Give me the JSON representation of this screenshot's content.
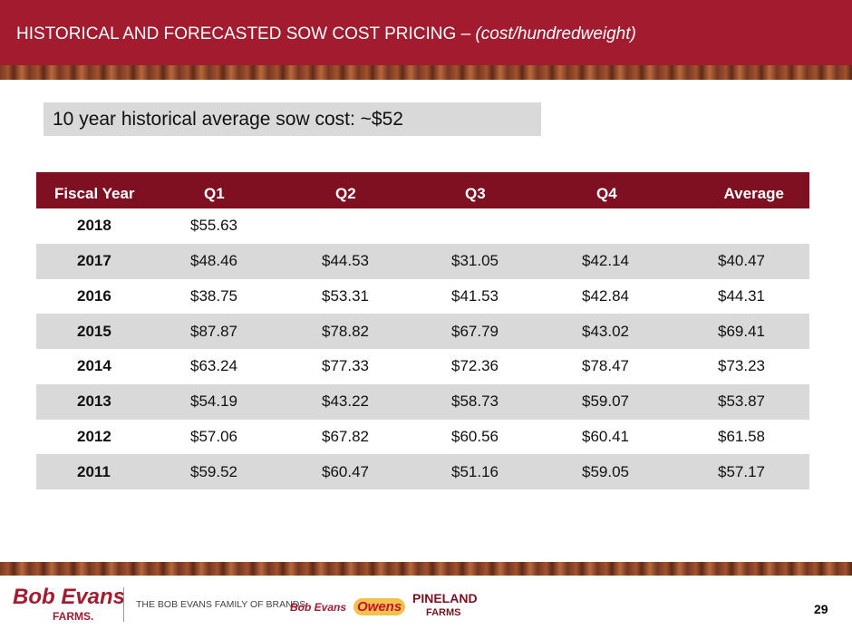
{
  "header": {
    "title": "HISTORICAL AND FORECASTED SOW COST PRICING",
    "title_dash": "–",
    "title_note": "(cost/hundredweight)"
  },
  "callout": "10 year historical average sow cost:  ~$52",
  "table": {
    "columns": [
      "Fiscal Year",
      "Q1",
      "Q2",
      "Q3",
      "Q4",
      "Average"
    ],
    "rows": [
      [
        "2018",
        "$55.63"
      ],
      [
        "2017",
        "$48.46",
        "$44.53",
        "$31.05",
        "$42.14",
        "$40.47"
      ],
      [
        "2016",
        "$38.75",
        "$53.31",
        "$41.53",
        "$42.84",
        "$44.31"
      ],
      [
        "2015",
        "$87.87",
        "$78.82",
        "$67.79",
        "$43.02",
        "$69.41"
      ],
      [
        "2014",
        "$63.24",
        "$77.33",
        "$72.36",
        "$78.47",
        "$73.23"
      ],
      [
        "2013",
        "$54.19",
        "$43.22",
        "$58.73",
        "$59.07",
        "$53.87"
      ],
      [
        "2012",
        "$57.06",
        "$67.82",
        "$60.56",
        "$60.41",
        "$61.58"
      ],
      [
        "2011",
        "$59.52",
        "$60.47",
        "$51.16",
        "$59.05",
        "$57.17"
      ]
    ]
  },
  "footer": {
    "logo_main": "Bob Evans",
    "logo_main_sub": "FARMS.",
    "tagline": "THE BOB EVANS FAMILY OF BRANDS",
    "brand_1": "Bob Evans",
    "brand_2": "Owens",
    "brand_3": "PINELAND",
    "brand_3_sub": "FARMS",
    "page_number": "29"
  }
}
